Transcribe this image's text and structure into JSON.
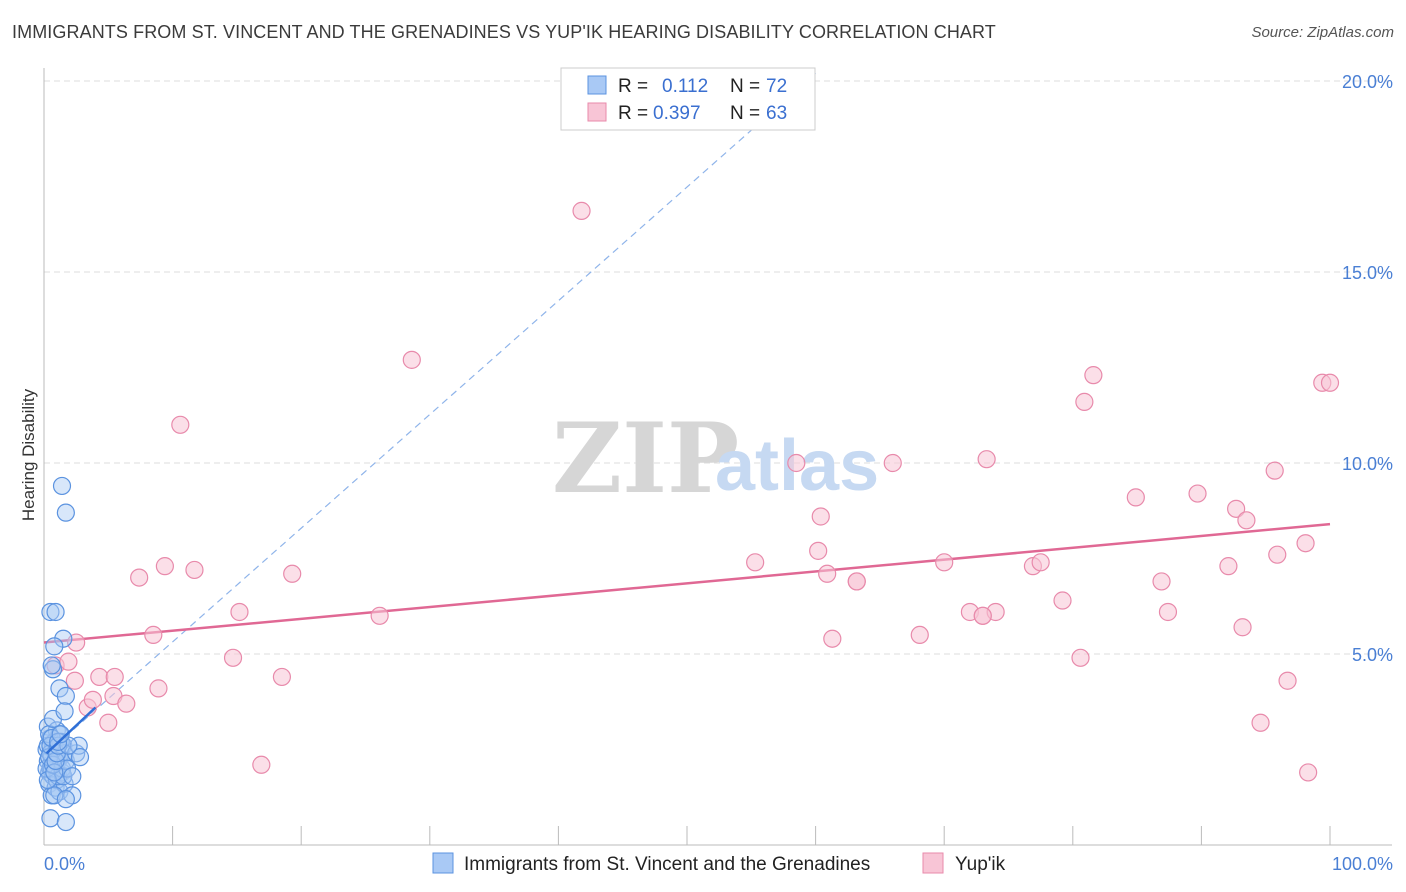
{
  "title": "IMMIGRANTS FROM ST. VINCENT AND THE GRENADINES VS YUP'IK HEARING DISABILITY CORRELATION CHART",
  "source": "Source: ZipAtlas.com",
  "watermark": {
    "zip": "ZIP",
    "atlas": "atlas"
  },
  "colors": {
    "blue_fill": "#a9c9f5",
    "blue_stroke": "#5b93e0",
    "blue_line": "#2f6fd6",
    "pink_fill": "#f8c5d6",
    "pink_stroke": "#e88aab",
    "pink_line": "#e06894",
    "grid": "#dddddd",
    "axis_text": "#4a7fd4"
  },
  "legend": {
    "blue": {
      "r_label": "R =",
      "r_value": "0.112",
      "n_label": "N =",
      "n_value": "72"
    },
    "pink": {
      "r_label": "R =",
      "r_value": "0.397",
      "n_label": "N =",
      "n_value": "63"
    }
  },
  "chart_data": {
    "type": "scatter",
    "title": "IMMIGRANTS FROM ST. VINCENT AND THE GRENADINES VS YUP'IK HEARING DISABILITY CORRELATION CHART",
    "xlabel": "",
    "ylabel": "Hearing Disability",
    "xlim": [
      0,
      100
    ],
    "ylim": [
      0,
      20.5
    ],
    "x_tick_labels": [
      "0.0%",
      "100.0%"
    ],
    "y_ticks": [
      5,
      10,
      15,
      20
    ],
    "y_tick_labels": [
      "5.0%",
      "10.0%",
      "15.0%",
      "20.0%"
    ],
    "grid": true,
    "legend_position": "top-center",
    "series": [
      {
        "name": "Immigrants from St. Vincent and the Grenadines",
        "color": "#5b93e0",
        "r": 0.112,
        "n": 72,
        "trend_solid": [
          [
            0.2,
            2.4
          ],
          [
            4.0,
            3.6
          ]
        ],
        "trend_dashed": [
          [
            0.2,
            2.4
          ],
          [
            60,
            20.2
          ]
        ],
        "points": [
          [
            0.2,
            2.5
          ],
          [
            0.3,
            3.1
          ],
          [
            0.3,
            2.2
          ],
          [
            0.4,
            1.9
          ],
          [
            0.4,
            1.6
          ],
          [
            0.5,
            2.8
          ],
          [
            0.5,
            2.0
          ],
          [
            0.6,
            1.3
          ],
          [
            0.6,
            2.3
          ],
          [
            0.7,
            2.6
          ],
          [
            0.7,
            1.8
          ],
          [
            0.8,
            2.1
          ],
          [
            0.8,
            2.7
          ],
          [
            0.9,
            1.5
          ],
          [
            0.9,
            2.4
          ],
          [
            1.0,
            3.0
          ],
          [
            1.0,
            1.7
          ],
          [
            1.1,
            2.2
          ],
          [
            1.2,
            2.9
          ],
          [
            1.2,
            1.4
          ],
          [
            1.3,
            2.5
          ],
          [
            1.4,
            1.9
          ],
          [
            1.5,
            2.6
          ],
          [
            1.6,
            1.6
          ],
          [
            0.3,
            2.6
          ],
          [
            0.4,
            2.9
          ],
          [
            0.5,
            2.4
          ],
          [
            0.6,
            2.0
          ],
          [
            0.7,
            3.3
          ],
          [
            0.8,
            1.3
          ],
          [
            0.9,
            2.0
          ],
          [
            1.0,
            2.5
          ],
          [
            1.1,
            1.8
          ],
          [
            1.2,
            2.3
          ],
          [
            1.3,
            2.7
          ],
          [
            1.4,
            2.0
          ],
          [
            1.5,
            1.8
          ],
          [
            1.6,
            2.4
          ],
          [
            1.7,
            2.2
          ],
          [
            1.8,
            2.0
          ],
          [
            0.2,
            2.0
          ],
          [
            0.3,
            1.7
          ],
          [
            0.4,
            2.3
          ],
          [
            0.5,
            2.6
          ],
          [
            0.6,
            2.8
          ],
          [
            0.7,
            2.1
          ],
          [
            0.8,
            1.9
          ],
          [
            0.9,
            2.2
          ],
          [
            1.0,
            2.4
          ],
          [
            1.1,
            2.6
          ],
          [
            0.5,
            6.1
          ],
          [
            0.9,
            6.1
          ],
          [
            1.5,
            5.4
          ],
          [
            0.8,
            5.2
          ],
          [
            0.7,
            4.6
          ],
          [
            0.6,
            4.7
          ],
          [
            1.2,
            4.1
          ],
          [
            1.7,
            3.9
          ],
          [
            1.6,
            3.5
          ],
          [
            1.4,
            9.4
          ],
          [
            1.7,
            8.7
          ],
          [
            2.5,
            2.4
          ],
          [
            2.7,
            2.6
          ],
          [
            2.8,
            2.3
          ],
          [
            1.9,
            2.6
          ],
          [
            2.2,
            1.8
          ],
          [
            2.2,
            1.3
          ],
          [
            1.7,
            1.2
          ],
          [
            0.5,
            0.7
          ],
          [
            1.7,
            0.6
          ],
          [
            1.1,
            2.7
          ],
          [
            1.3,
            2.9
          ]
        ]
      },
      {
        "name": "Yup'ik",
        "color": "#e88aab",
        "r": 0.397,
        "n": 63,
        "trend_solid": [
          [
            0,
            5.3
          ],
          [
            100,
            8.4
          ]
        ],
        "points": [
          [
            0.9,
            4.7
          ],
          [
            1.9,
            4.8
          ],
          [
            2.5,
            5.3
          ],
          [
            2.4,
            4.3
          ],
          [
            3.4,
            3.6
          ],
          [
            3.8,
            3.8
          ],
          [
            4.3,
            4.4
          ],
          [
            5.0,
            3.2
          ],
          [
            5.4,
            3.9
          ],
          [
            5.5,
            4.4
          ],
          [
            6.4,
            3.7
          ],
          [
            7.4,
            7.0
          ],
          [
            8.5,
            5.5
          ],
          [
            8.9,
            4.1
          ],
          [
            9.4,
            7.3
          ],
          [
            10.6,
            11.0
          ],
          [
            11.7,
            7.2
          ],
          [
            14.7,
            4.9
          ],
          [
            15.2,
            6.1
          ],
          [
            16.9,
            2.1
          ],
          [
            18.5,
            4.4
          ],
          [
            19.3,
            7.1
          ],
          [
            26.1,
            6.0
          ],
          [
            28.6,
            12.7
          ],
          [
            41.8,
            16.6
          ],
          [
            55.3,
            7.4
          ],
          [
            58.5,
            10.0
          ],
          [
            60.2,
            7.7
          ],
          [
            60.4,
            8.6
          ],
          [
            60.9,
            7.1
          ],
          [
            61.3,
            5.4
          ],
          [
            63.2,
            6.9
          ],
          [
            66.0,
            10.0
          ],
          [
            68.1,
            5.5
          ],
          [
            70.0,
            7.4
          ],
          [
            72.0,
            6.1
          ],
          [
            73.0,
            6.0
          ],
          [
            74.0,
            6.1
          ],
          [
            73.3,
            10.1
          ],
          [
            76.9,
            7.3
          ],
          [
            77.5,
            7.4
          ],
          [
            79.2,
            6.4
          ],
          [
            80.6,
            4.9
          ],
          [
            80.9,
            11.6
          ],
          [
            81.6,
            12.3
          ],
          [
            84.9,
            9.1
          ],
          [
            86.9,
            6.9
          ],
          [
            87.4,
            6.1
          ],
          [
            89.7,
            9.2
          ],
          [
            92.1,
            7.3
          ],
          [
            92.7,
            8.8
          ],
          [
            93.2,
            5.7
          ],
          [
            93.5,
            8.5
          ],
          [
            94.6,
            3.2
          ],
          [
            95.7,
            9.8
          ],
          [
            95.9,
            7.6
          ],
          [
            96.7,
            4.3
          ],
          [
            98.1,
            7.9
          ],
          [
            98.3,
            1.9
          ],
          [
            99.4,
            12.1
          ],
          [
            100.0,
            12.1
          ],
          [
            73.0,
            6.0
          ],
          [
            63.2,
            6.9
          ]
        ]
      }
    ]
  }
}
